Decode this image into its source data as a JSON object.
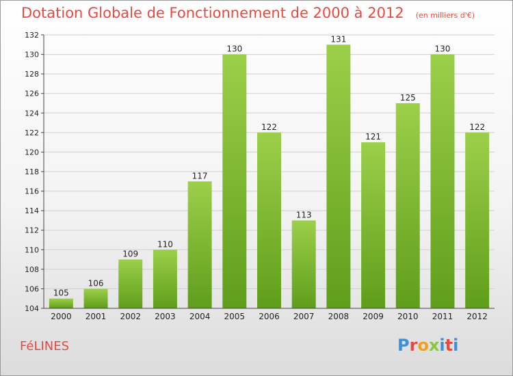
{
  "chart_data": {
    "type": "bar",
    "title": "Dotation Globale de Fonctionnement de 2000 à 2012",
    "subtitle": "(en milliers d'€)",
    "categories": [
      "2000",
      "2001",
      "2002",
      "2003",
      "2004",
      "2005",
      "2006",
      "2007",
      "2008",
      "2009",
      "2010",
      "2011",
      "2012"
    ],
    "values": [
      105,
      106,
      109,
      110,
      117,
      130,
      122,
      113,
      131,
      121,
      125,
      130,
      122
    ],
    "ylim": [
      104,
      132
    ],
    "yticks": [
      104,
      106,
      108,
      110,
      112,
      114,
      116,
      118,
      120,
      122,
      124,
      126,
      128,
      130,
      132
    ],
    "grid": true,
    "bar_color_top": "#9ccf4a",
    "bar_color_bottom": "#5f9e1a"
  },
  "footer": {
    "commune": "FéLINES",
    "logo_text": "Proxiti",
    "logo_colors": [
      "#3d8fd6",
      "#e8493f",
      "#f0a020",
      "#8cc63f",
      "#3d8fd6",
      "#e8493f",
      "#3d8fd6"
    ]
  },
  "colors": {
    "title": "#e8493f",
    "grid": "#d0d0d0",
    "axis_text": "#222222"
  }
}
